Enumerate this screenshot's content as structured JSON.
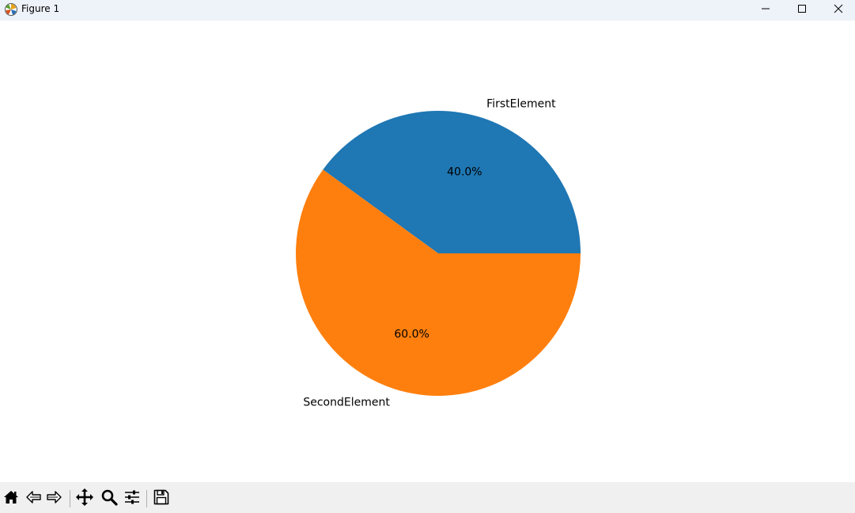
{
  "window": {
    "title": "Figure 1",
    "controls": [
      "minimize-icon",
      "maximize-icon",
      "close-icon"
    ]
  },
  "toolbar": {
    "tools": [
      "home-icon",
      "back-icon",
      "forward-icon",
      "pan-icon",
      "zoom-icon",
      "configure-subplots-icon",
      "save-icon"
    ]
  },
  "chart_data": {
    "type": "pie",
    "title": "",
    "categories": [
      "FirstElement",
      "SecondElement"
    ],
    "values": [
      40,
      60
    ],
    "value_labels": [
      "40.0%",
      "60.0%"
    ],
    "colors": [
      "#1f77b4",
      "#ff7f0e"
    ],
    "start_angle": 0,
    "direction": "counterclockwise",
    "legend": false
  }
}
